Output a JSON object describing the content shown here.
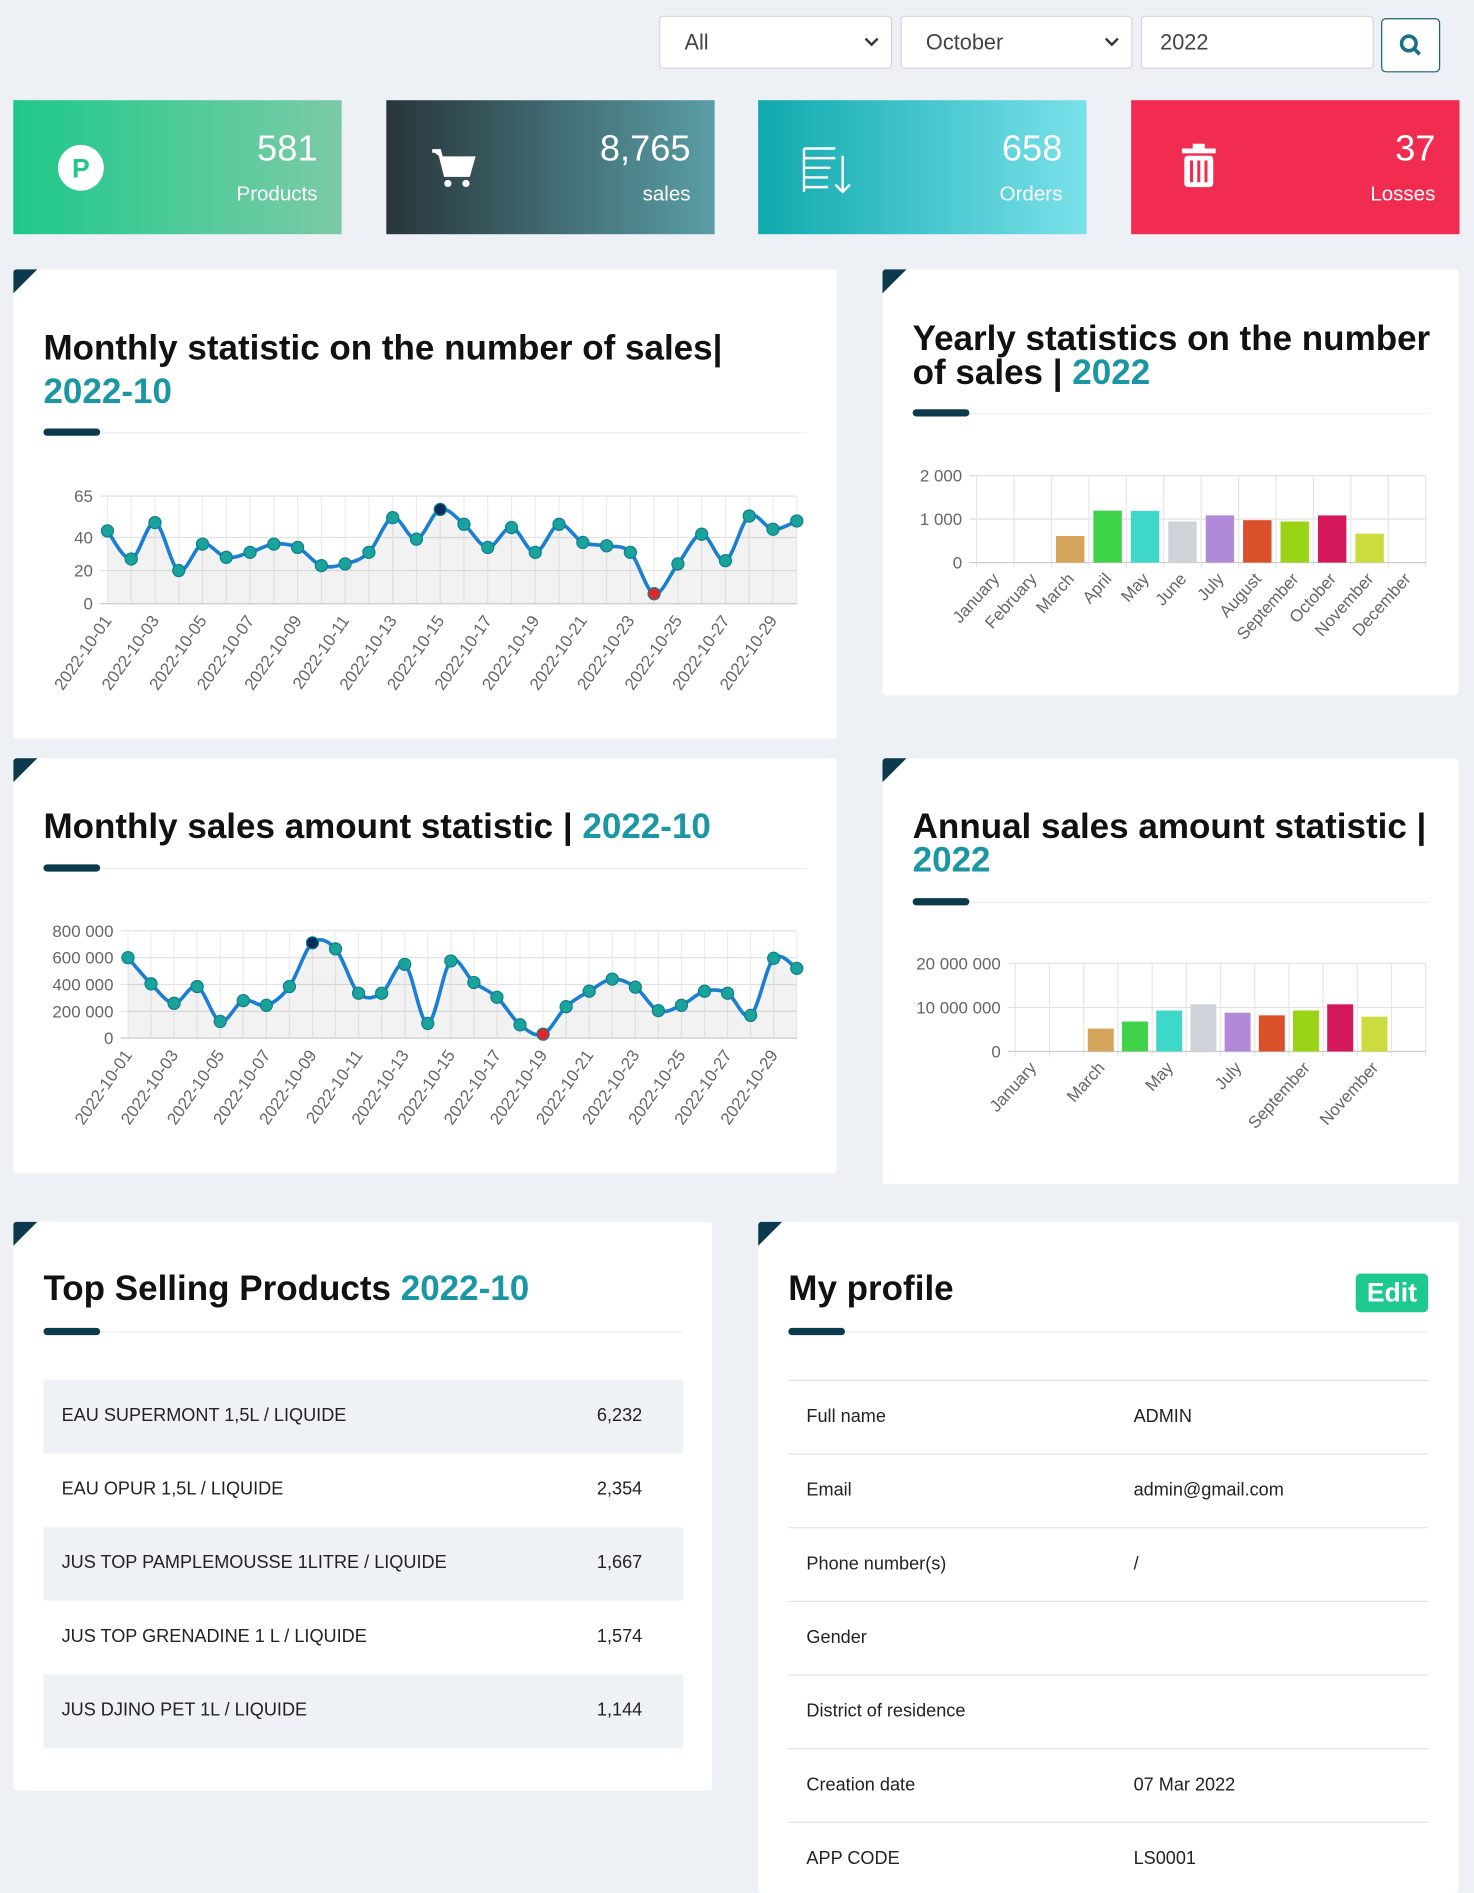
{
  "filters": {
    "category": "All",
    "month": "October",
    "year": "2022"
  },
  "cards": [
    {
      "value": "581",
      "label": "Products"
    },
    {
      "value": "8,765",
      "label": "sales"
    },
    {
      "value": "658",
      "label": "Orders"
    },
    {
      "value": "37",
      "label": "Losses"
    }
  ],
  "chart_data": [
    {
      "type": "line",
      "title": "Monthly statistic on the number of sales|",
      "period": "2022-10",
      "x": [
        "2022-10-01",
        null,
        "2022-10-03",
        null,
        "2022-10-05",
        null,
        "2022-10-07",
        null,
        "2022-10-09",
        null,
        "2022-10-11",
        null,
        "2022-10-13",
        null,
        "2022-10-15",
        null,
        "2022-10-17",
        null,
        "2022-10-19",
        null,
        "2022-10-21",
        null,
        "2022-10-23",
        null,
        "2022-10-25",
        null,
        "2022-10-27",
        null,
        "2022-10-29",
        null
      ],
      "values": [
        44,
        27,
        49,
        20,
        36,
        28,
        31,
        36,
        34,
        23,
        24,
        31,
        52,
        39,
        57,
        48,
        34,
        46,
        31,
        48,
        37,
        35,
        31,
        6,
        24,
        42,
        26,
        53,
        45,
        50
      ],
      "color": "#1a7fd4",
      "marker_color": "#1aa39a",
      "max_color": "#0b2a5c",
      "min_color": "#e0262b",
      "ylim": [
        0,
        65
      ],
      "yticks": [
        0,
        20,
        40,
        65
      ],
      "grid": true
    },
    {
      "type": "bar",
      "title": "Yearly statistics on the number of sales |",
      "period": "2022",
      "categories": [
        "January",
        "February",
        "March",
        "April",
        "May",
        "June",
        "July",
        "August",
        "September",
        "October",
        "November",
        "December"
      ],
      "values": [
        0,
        0,
        610,
        1195,
        1190,
        945,
        1085,
        975,
        945,
        1085,
        665,
        0
      ],
      "colors": [
        "#d4a45a",
        "#d4a45a",
        "#d4a45a",
        "#3fd34a",
        "#3fd8c8",
        "#cfd3d9",
        "#b08ad8",
        "#d9502a",
        "#99d416",
        "#d3175a",
        "#ccdb3d",
        "#ccdb3d"
      ],
      "ylim": [
        0,
        2000
      ],
      "yticks": [
        0,
        {
          "value": 1000,
          "label": "1 000"
        },
        {
          "value": 2000,
          "label": "2 000"
        }
      ],
      "grid": true
    },
    {
      "type": "line",
      "title": "Monthly sales amount statistic |",
      "period": "2022-10",
      "x": [
        "2022-10-01",
        null,
        "2022-10-03",
        null,
        "2022-10-05",
        null,
        "2022-10-07",
        null,
        "2022-10-09",
        null,
        "2022-10-11",
        null,
        "2022-10-13",
        null,
        "2022-10-15",
        null,
        "2022-10-17",
        null,
        "2022-10-19",
        null,
        "2022-10-21",
        null,
        "2022-10-23",
        null,
        "2022-10-25",
        null,
        "2022-10-27",
        null,
        "2022-10-29",
        null
      ],
      "values": [
        600000,
        405000,
        260000,
        385000,
        125000,
        280000,
        245000,
        385000,
        710000,
        665000,
        335000,
        335000,
        550000,
        110000,
        575000,
        415000,
        305000,
        100000,
        30000,
        235000,
        350000,
        440000,
        380000,
        205000,
        245000,
        350000,
        335000,
        170000,
        595000,
        520000
      ],
      "color": "#1a7fd4",
      "marker_color": "#1aa39a",
      "max_color": "#0b2a5c",
      "min_color": "#e0262b",
      "ylim": [
        0,
        800000
      ],
      "yticks": [
        0,
        {
          "value": 200000,
          "label": "200 000"
        },
        {
          "value": 400000,
          "label": "400 000"
        },
        {
          "value": 600000,
          "label": "600 000"
        },
        {
          "value": 800000,
          "label": "800 000"
        }
      ],
      "grid": true
    },
    {
      "type": "bar",
      "title": "Annual sales amount statistic |",
      "period": "2022",
      "categories": [
        "January",
        null,
        "March",
        null,
        "May",
        null,
        "July",
        null,
        "September",
        null,
        "November",
        null
      ],
      "values": [
        0,
        0,
        5200000,
        6800000,
        9300000,
        10700000,
        8800000,
        8200000,
        9300000,
        10700000,
        7900000,
        0
      ],
      "colors": [
        "#d4a45a",
        "#d4a45a",
        "#d4a45a",
        "#3fd34a",
        "#3fd8c8",
        "#cfd3d9",
        "#b08ad8",
        "#d9502a",
        "#99d416",
        "#d3175a",
        "#ccdb3d",
        "#ccdb3d"
      ],
      "ylim": [
        0,
        20000000
      ],
      "yticks": [
        0,
        {
          "value": 10000000,
          "label": "10 000 000"
        },
        {
          "value": 20000000,
          "label": "20 000 000"
        }
      ],
      "grid": true
    }
  ],
  "top_products": {
    "title": "Top Selling Products",
    "period": "2022-10",
    "rows": [
      [
        "EAU SUPERMONT 1,5L / LIQUIDE",
        "6,232"
      ],
      [
        "EAU OPUR 1,5L / LIQUIDE",
        "2,354"
      ],
      [
        "JUS TOP PAMPLEMOUSSE 1LITRE / LIQUIDE",
        "1,667"
      ],
      [
        "JUS TOP GRENADINE 1 L / LIQUIDE",
        "1,574"
      ],
      [
        "JUS DJINO PET 1L / LIQUIDE",
        "1,144"
      ]
    ]
  },
  "profile": {
    "title": "My profile",
    "edit": "Edit",
    "rows": [
      [
        "Full name",
        "ADMIN"
      ],
      [
        "Email",
        "admin@gmail.com"
      ],
      [
        "Phone number(s)",
        "/"
      ],
      [
        "Gender"
      ],
      [
        "District of residence"
      ],
      [
        "Creation date",
        "07 Mar 2022"
      ],
      [
        "APP CODE",
        "LS0001"
      ]
    ]
  }
}
